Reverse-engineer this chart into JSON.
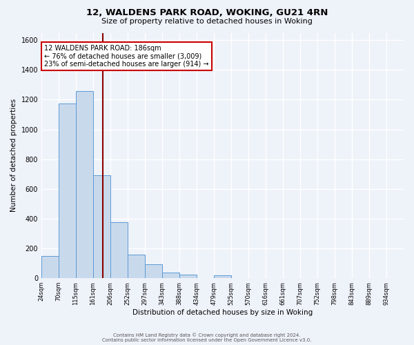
{
  "title1": "12, WALDENS PARK ROAD, WOKING, GU21 4RN",
  "title2": "Size of property relative to detached houses in Woking",
  "xlabel": "Distribution of detached houses by size in Woking",
  "ylabel": "Number of detached properties",
  "bar_labels": [
    "24sqm",
    "70sqm",
    "115sqm",
    "161sqm",
    "206sqm",
    "252sqm",
    "297sqm",
    "343sqm",
    "388sqm",
    "434sqm",
    "479sqm",
    "525sqm",
    "570sqm",
    "616sqm",
    "661sqm",
    "707sqm",
    "752sqm",
    "798sqm",
    "843sqm",
    "889sqm",
    "934sqm"
  ],
  "bar_values": [
    150,
    1175,
    1260,
    690,
    375,
    160,
    92,
    38,
    22,
    0,
    20,
    0,
    0,
    0,
    0,
    0,
    0,
    0,
    0,
    0,
    0
  ],
  "bar_color": "#c9d9ec",
  "bar_edge_color": "#5b9bd5",
  "ylim": [
    0,
    1650
  ],
  "yticks": [
    0,
    200,
    400,
    600,
    800,
    1000,
    1200,
    1400,
    1600
  ],
  "vline_color": "#8b0000",
  "annotation_text1": "12 WALDENS PARK ROAD: 186sqm",
  "annotation_text2": "← 76% of detached houses are smaller (3,009)",
  "annotation_text3": "23% of semi-detached houses are larger (914) →",
  "annotation_box_color": "#ffffff",
  "annotation_border_color": "#cc0000",
  "footer1": "Contains HM Land Registry data © Crown copyright and database right 2024.",
  "footer2": "Contains public sector information licensed under the Open Government Licence v3.0.",
  "bg_color": "#eef2f9",
  "plot_bg_color": "#eef2f9",
  "grid_color": "#ffffff",
  "bin_width": 1
}
